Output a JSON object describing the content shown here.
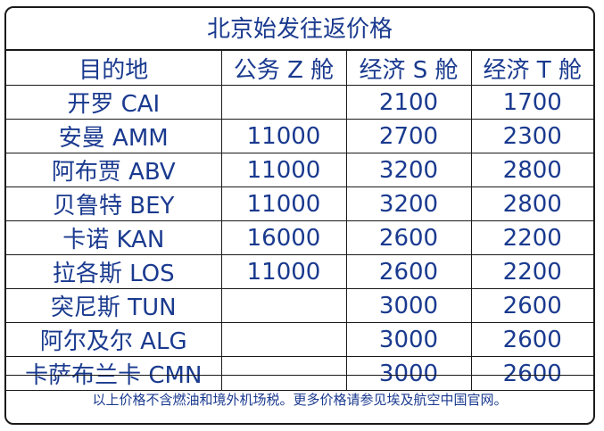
{
  "title": "北京始发往返价格",
  "table": {
    "headers": [
      "目的地",
      "公务 Z 舱",
      "经济 S 舱",
      "经济 T 舱"
    ],
    "rows": [
      [
        "开罗 CAI",
        "",
        "2100",
        "1700"
      ],
      [
        "安曼 AMM",
        "11000",
        "2700",
        "2300"
      ],
      [
        "阿布贾 ABV",
        "11000",
        "3200",
        "2800"
      ],
      [
        "贝鲁特 BEY",
        "11000",
        "3200",
        "2800"
      ],
      [
        "卡诺 KAN",
        "16000",
        "2600",
        "2200"
      ],
      [
        "拉各斯 LOS",
        "11000",
        "2600",
        "2200"
      ],
      [
        "突尼斯 TUN",
        "",
        "3000",
        "2600"
      ],
      [
        "阿尔及尔 ALG",
        "",
        "3000",
        "2600"
      ],
      [
        "卡萨布兰卡 CMN",
        "",
        "3000",
        "2600"
      ]
    ]
  },
  "footnote": "以上价格不含燃油和境外机场税。更多价格请参见埃及航空中国官网。",
  "colors": {
    "text": "#1a3a8f",
    "border": "#1a1a1a",
    "background": "#ffffff"
  }
}
